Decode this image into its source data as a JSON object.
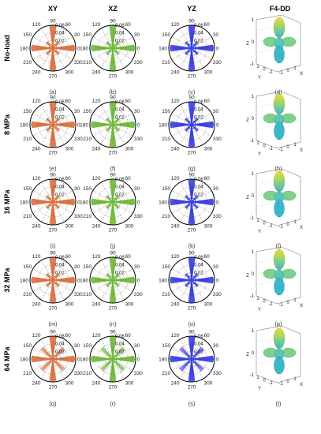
{
  "column_headers": [
    "XY",
    "XZ",
    "YZ",
    "F4-DD"
  ],
  "row_headers": [
    "No-load",
    "8 MPa",
    "16 MPa",
    "32 MPa",
    "64 MPa"
  ],
  "panel_labels": [
    [
      "(a)",
      "(b)",
      "(c)",
      "(d)"
    ],
    [
      "(e)",
      "(f)",
      "(g)",
      "(h)"
    ],
    [
      "(i)",
      "(j)",
      "(k)",
      "(l)"
    ],
    [
      "(m)",
      "(n)",
      "(o)",
      "(p)"
    ],
    [
      "(q)",
      "(r)",
      "(s)",
      "(t)"
    ]
  ],
  "polar": {
    "angle_labels": [
      "90",
      "60",
      "30",
      "0",
      "330",
      "300",
      "270",
      "240",
      "210",
      "180",
      "150",
      "120"
    ],
    "radial_labels": [
      "0.02",
      "0.04",
      "0.06"
    ]
  },
  "surface3d": {
    "z_ticks": [
      "1",
      "0",
      "-1"
    ],
    "y_ticks": [
      "1",
      "0",
      "-1"
    ],
    "x_ticks": [
      "-1",
      "0",
      "1"
    ],
    "axis_x": "X",
    "axis_y": "Y",
    "axis_z": "Z"
  },
  "colors": {
    "xy_series": "#d9703f",
    "xz_series": "#6fb83a",
    "yz_series": "#3a3ee0",
    "surface_top": "#f2d51a",
    "surface_bottom": "#2cb3c8"
  }
}
